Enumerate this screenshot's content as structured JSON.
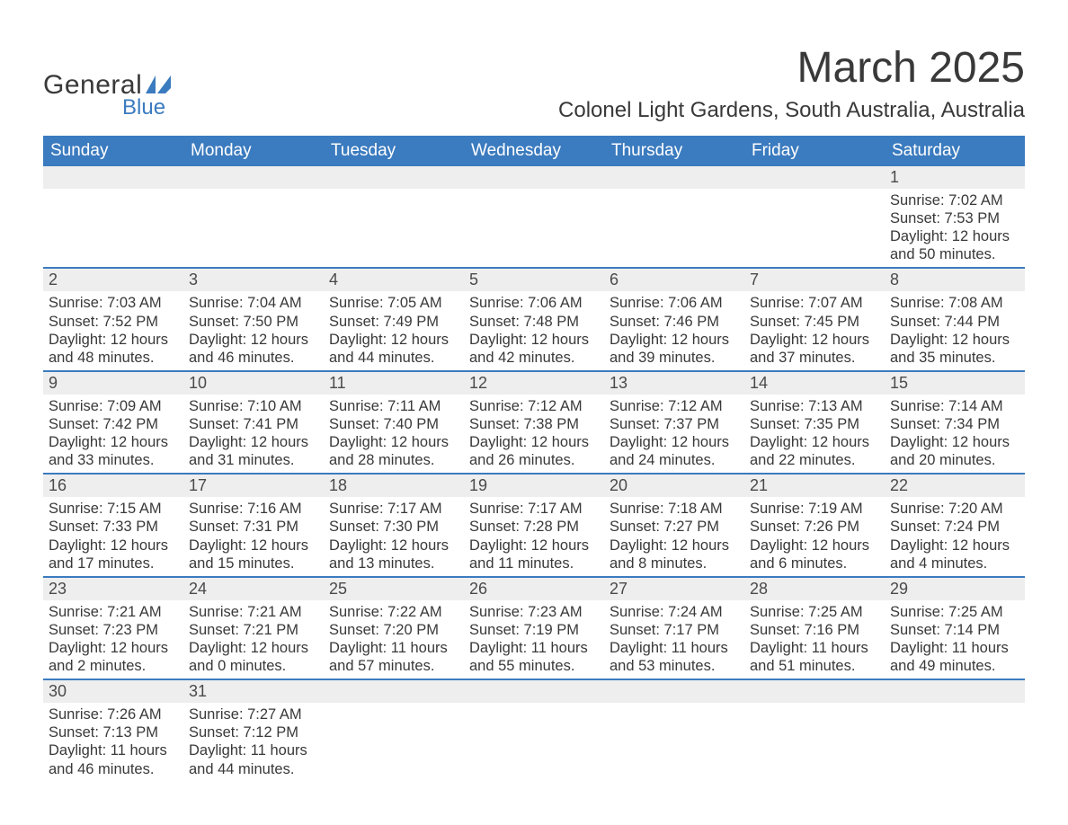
{
  "logo": {
    "word1": "General",
    "word2": "Blue"
  },
  "colors": {
    "brand_blue": "#3b7bbf",
    "row_gray": "#eeeeee",
    "text": "#393939",
    "header_text": "#ffffff"
  },
  "title": "March 2025",
  "location": "Colonel Light Gardens, South Australia, Australia",
  "day_headers": [
    "Sunday",
    "Monday",
    "Tuesday",
    "Wednesday",
    "Thursday",
    "Friday",
    "Saturday"
  ],
  "weeks": [
    [
      {
        "empty": true
      },
      {
        "empty": true
      },
      {
        "empty": true
      },
      {
        "empty": true
      },
      {
        "empty": true
      },
      {
        "empty": true
      },
      {
        "day": "1",
        "sunrise": "Sunrise: 7:02 AM",
        "sunset": "Sunset: 7:53 PM",
        "daylight1": "Daylight: 12 hours",
        "daylight2": "and 50 minutes."
      }
    ],
    [
      {
        "day": "2",
        "sunrise": "Sunrise: 7:03 AM",
        "sunset": "Sunset: 7:52 PM",
        "daylight1": "Daylight: 12 hours",
        "daylight2": "and 48 minutes."
      },
      {
        "day": "3",
        "sunrise": "Sunrise: 7:04 AM",
        "sunset": "Sunset: 7:50 PM",
        "daylight1": "Daylight: 12 hours",
        "daylight2": "and 46 minutes."
      },
      {
        "day": "4",
        "sunrise": "Sunrise: 7:05 AM",
        "sunset": "Sunset: 7:49 PM",
        "daylight1": "Daylight: 12 hours",
        "daylight2": "and 44 minutes."
      },
      {
        "day": "5",
        "sunrise": "Sunrise: 7:06 AM",
        "sunset": "Sunset: 7:48 PM",
        "daylight1": "Daylight: 12 hours",
        "daylight2": "and 42 minutes."
      },
      {
        "day": "6",
        "sunrise": "Sunrise: 7:06 AM",
        "sunset": "Sunset: 7:46 PM",
        "daylight1": "Daylight: 12 hours",
        "daylight2": "and 39 minutes."
      },
      {
        "day": "7",
        "sunrise": "Sunrise: 7:07 AM",
        "sunset": "Sunset: 7:45 PM",
        "daylight1": "Daylight: 12 hours",
        "daylight2": "and 37 minutes."
      },
      {
        "day": "8",
        "sunrise": "Sunrise: 7:08 AM",
        "sunset": "Sunset: 7:44 PM",
        "daylight1": "Daylight: 12 hours",
        "daylight2": "and 35 minutes."
      }
    ],
    [
      {
        "day": "9",
        "sunrise": "Sunrise: 7:09 AM",
        "sunset": "Sunset: 7:42 PM",
        "daylight1": "Daylight: 12 hours",
        "daylight2": "and 33 minutes."
      },
      {
        "day": "10",
        "sunrise": "Sunrise: 7:10 AM",
        "sunset": "Sunset: 7:41 PM",
        "daylight1": "Daylight: 12 hours",
        "daylight2": "and 31 minutes."
      },
      {
        "day": "11",
        "sunrise": "Sunrise: 7:11 AM",
        "sunset": "Sunset: 7:40 PM",
        "daylight1": "Daylight: 12 hours",
        "daylight2": "and 28 minutes."
      },
      {
        "day": "12",
        "sunrise": "Sunrise: 7:12 AM",
        "sunset": "Sunset: 7:38 PM",
        "daylight1": "Daylight: 12 hours",
        "daylight2": "and 26 minutes."
      },
      {
        "day": "13",
        "sunrise": "Sunrise: 7:12 AM",
        "sunset": "Sunset: 7:37 PM",
        "daylight1": "Daylight: 12 hours",
        "daylight2": "and 24 minutes."
      },
      {
        "day": "14",
        "sunrise": "Sunrise: 7:13 AM",
        "sunset": "Sunset: 7:35 PM",
        "daylight1": "Daylight: 12 hours",
        "daylight2": "and 22 minutes."
      },
      {
        "day": "15",
        "sunrise": "Sunrise: 7:14 AM",
        "sunset": "Sunset: 7:34 PM",
        "daylight1": "Daylight: 12 hours",
        "daylight2": "and 20 minutes."
      }
    ],
    [
      {
        "day": "16",
        "sunrise": "Sunrise: 7:15 AM",
        "sunset": "Sunset: 7:33 PM",
        "daylight1": "Daylight: 12 hours",
        "daylight2": "and 17 minutes."
      },
      {
        "day": "17",
        "sunrise": "Sunrise: 7:16 AM",
        "sunset": "Sunset: 7:31 PM",
        "daylight1": "Daylight: 12 hours",
        "daylight2": "and 15 minutes."
      },
      {
        "day": "18",
        "sunrise": "Sunrise: 7:17 AM",
        "sunset": "Sunset: 7:30 PM",
        "daylight1": "Daylight: 12 hours",
        "daylight2": "and 13 minutes."
      },
      {
        "day": "19",
        "sunrise": "Sunrise: 7:17 AM",
        "sunset": "Sunset: 7:28 PM",
        "daylight1": "Daylight: 12 hours",
        "daylight2": "and 11 minutes."
      },
      {
        "day": "20",
        "sunrise": "Sunrise: 7:18 AM",
        "sunset": "Sunset: 7:27 PM",
        "daylight1": "Daylight: 12 hours",
        "daylight2": "and 8 minutes."
      },
      {
        "day": "21",
        "sunrise": "Sunrise: 7:19 AM",
        "sunset": "Sunset: 7:26 PM",
        "daylight1": "Daylight: 12 hours",
        "daylight2": "and 6 minutes."
      },
      {
        "day": "22",
        "sunrise": "Sunrise: 7:20 AM",
        "sunset": "Sunset: 7:24 PM",
        "daylight1": "Daylight: 12 hours",
        "daylight2": "and 4 minutes."
      }
    ],
    [
      {
        "day": "23",
        "sunrise": "Sunrise: 7:21 AM",
        "sunset": "Sunset: 7:23 PM",
        "daylight1": "Daylight: 12 hours",
        "daylight2": "and 2 minutes."
      },
      {
        "day": "24",
        "sunrise": "Sunrise: 7:21 AM",
        "sunset": "Sunset: 7:21 PM",
        "daylight1": "Daylight: 12 hours",
        "daylight2": "and 0 minutes."
      },
      {
        "day": "25",
        "sunrise": "Sunrise: 7:22 AM",
        "sunset": "Sunset: 7:20 PM",
        "daylight1": "Daylight: 11 hours",
        "daylight2": "and 57 minutes."
      },
      {
        "day": "26",
        "sunrise": "Sunrise: 7:23 AM",
        "sunset": "Sunset: 7:19 PM",
        "daylight1": "Daylight: 11 hours",
        "daylight2": "and 55 minutes."
      },
      {
        "day": "27",
        "sunrise": "Sunrise: 7:24 AM",
        "sunset": "Sunset: 7:17 PM",
        "daylight1": "Daylight: 11 hours",
        "daylight2": "and 53 minutes."
      },
      {
        "day": "28",
        "sunrise": "Sunrise: 7:25 AM",
        "sunset": "Sunset: 7:16 PM",
        "daylight1": "Daylight: 11 hours",
        "daylight2": "and 51 minutes."
      },
      {
        "day": "29",
        "sunrise": "Sunrise: 7:25 AM",
        "sunset": "Sunset: 7:14 PM",
        "daylight1": "Daylight: 11 hours",
        "daylight2": "and 49 minutes."
      }
    ],
    [
      {
        "day": "30",
        "sunrise": "Sunrise: 7:26 AM",
        "sunset": "Sunset: 7:13 PM",
        "daylight1": "Daylight: 11 hours",
        "daylight2": "and 46 minutes."
      },
      {
        "day": "31",
        "sunrise": "Sunrise: 7:27 AM",
        "sunset": "Sunset: 7:12 PM",
        "daylight1": "Daylight: 11 hours",
        "daylight2": "and 44 minutes."
      },
      {
        "empty": true
      },
      {
        "empty": true
      },
      {
        "empty": true
      },
      {
        "empty": true
      },
      {
        "empty": true
      }
    ]
  ]
}
